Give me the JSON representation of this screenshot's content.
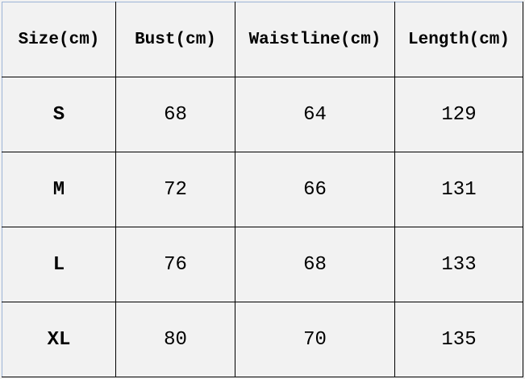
{
  "table": {
    "headers": [
      "Size(cm)",
      "Bust(cm)",
      "Waistline(cm)",
      "Length(cm)"
    ],
    "rows": [
      [
        "S",
        "68",
        "64",
        "129"
      ],
      [
        "M",
        "72",
        "66",
        "131"
      ],
      [
        "L",
        "76",
        "68",
        "133"
      ],
      [
        "XL",
        "80",
        "70",
        "135"
      ]
    ]
  }
}
